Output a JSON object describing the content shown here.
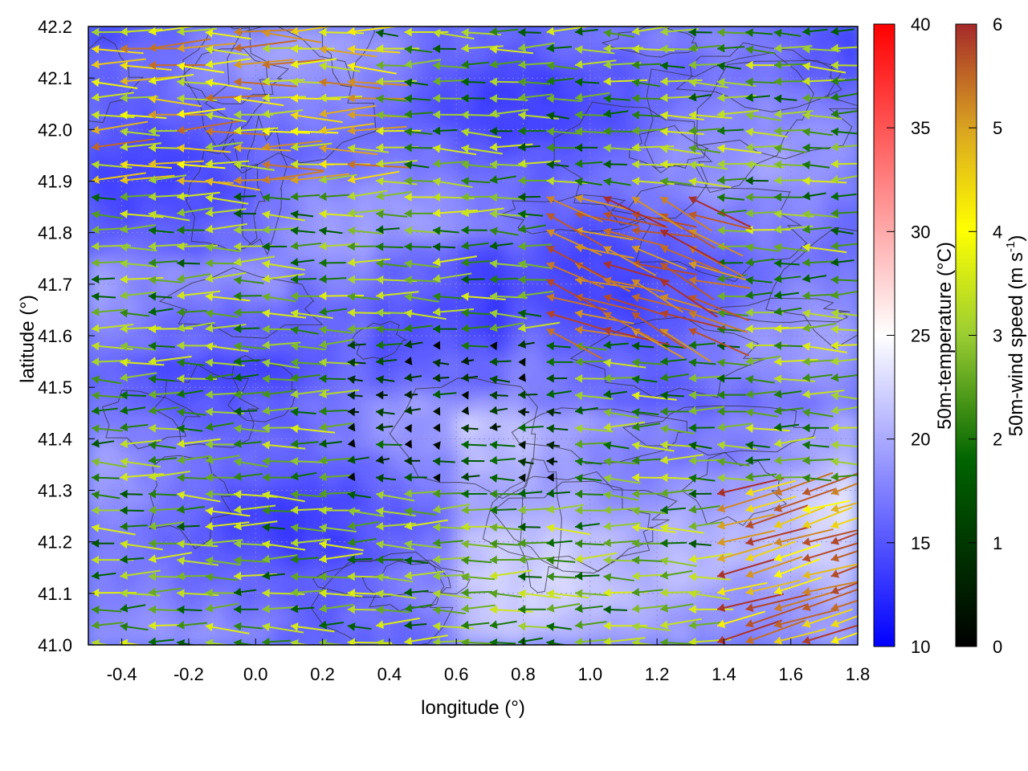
{
  "chart_data": {
    "type": "heatmap",
    "xlabel": "longitude (°)",
    "ylabel": "latitude (°)",
    "xlim": [
      -0.5,
      1.8
    ],
    "ylim": [
      41.0,
      42.2
    ],
    "xticks": [
      "-0.4",
      "-0.2",
      "0.0",
      "0.2",
      "0.4",
      "0.6",
      "0.8",
      "1.0",
      "1.2",
      "1.4",
      "1.6",
      "1.8"
    ],
    "xtick_values": [
      -0.4,
      -0.2,
      0.0,
      0.2,
      0.4,
      0.6,
      0.8,
      1.0,
      1.2,
      1.4,
      1.6,
      1.8
    ],
    "yticks": [
      "41.0",
      "41.1",
      "41.2",
      "41.3",
      "41.4",
      "41.5",
      "41.6",
      "41.7",
      "41.8",
      "41.9",
      "42.0",
      "42.1",
      "42.2"
    ],
    "ytick_values": [
      41.0,
      41.1,
      41.2,
      41.3,
      41.4,
      41.5,
      41.6,
      41.7,
      41.8,
      41.9,
      42.0,
      42.1,
      42.2
    ],
    "grid": true,
    "temperature_colorbar": {
      "label": "50m-temperature (°C)",
      "range": [
        10,
        40
      ],
      "ticks": [
        "10",
        "15",
        "20",
        "25",
        "30",
        "35",
        "40"
      ],
      "tick_values": [
        10,
        15,
        20,
        25,
        30,
        35,
        40
      ],
      "colors": [
        "#0000ff",
        "#ffffff",
        "#ff0000"
      ]
    },
    "wind_colorbar": {
      "label_main": "50m-wind speed (m s",
      "label_sup": "-1",
      "label_close": ")",
      "range": [
        0,
        6
      ],
      "ticks": [
        "0",
        "1",
        "2",
        "3",
        "4",
        "5",
        "6"
      ],
      "tick_values": [
        0,
        1,
        2,
        3,
        4,
        5,
        6
      ],
      "colors": [
        "#000000",
        "#006400",
        "#9acd32",
        "#ffff00",
        "#daa520",
        "#a52a2a"
      ]
    },
    "temperature_field_typical_range": [
      14,
      22
    ],
    "wind_field_note_regions": [
      {
        "lon": [
          -0.5,
          0.3
        ],
        "lat": [
          41.9,
          42.2
        ],
        "speed": [
          3,
          5.5
        ]
      },
      {
        "lon": [
          0.8,
          1.3
        ],
        "lat": [
          41.6,
          41.9
        ],
        "speed": [
          5,
          6
        ]
      },
      {
        "lon": [
          1.3,
          1.8
        ],
        "lat": [
          41.0,
          41.3
        ],
        "speed": [
          4,
          6
        ]
      },
      {
        "lon": [
          0.2,
          0.9
        ],
        "lat": [
          41.3,
          41.6
        ],
        "speed": [
          0,
          2
        ]
      }
    ]
  }
}
